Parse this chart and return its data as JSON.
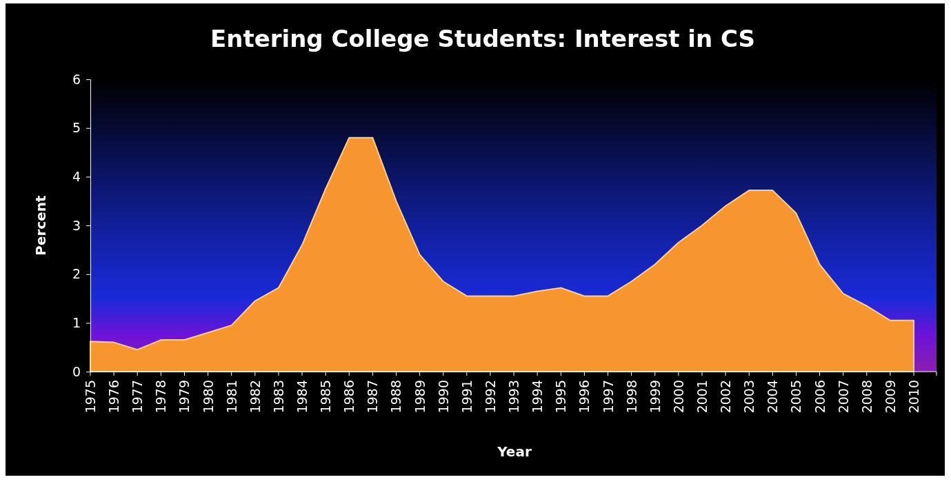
{
  "chart_data": {
    "type": "area",
    "title": "Entering College Students: Interest in CS",
    "xlabel": "Year",
    "ylabel": "Percent",
    "categories": [
      "1975",
      "1976",
      "1977",
      "1978",
      "1979",
      "1980",
      "1981",
      "1982",
      "1983",
      "1984",
      "1985",
      "1986",
      "1987",
      "1988",
      "1989",
      "1990",
      "1991",
      "1992",
      "1993",
      "1994",
      "1995",
      "1996",
      "1997",
      "1998",
      "1999",
      "2000",
      "2001",
      "2002",
      "2003",
      "2004",
      "2005",
      "2006",
      "2007",
      "2008",
      "2009",
      "2010"
    ],
    "series": [
      {
        "color": "#f7962f",
        "values": [
          0.62,
          0.6,
          0.45,
          0.65,
          0.65,
          0.8,
          0.95,
          1.45,
          1.72,
          2.6,
          3.75,
          4.8,
          4.8,
          3.5,
          2.4,
          1.85,
          1.55,
          1.55,
          1.55,
          1.65,
          1.72,
          1.55,
          1.55,
          1.85,
          2.2,
          2.65,
          3.0,
          3.4,
          3.72,
          3.72,
          3.25,
          2.2,
          1.6,
          1.35,
          1.05,
          1.05
        ]
      }
    ],
    "ylim": [
      0,
      6
    ],
    "yticks": [
      0,
      1,
      2,
      3,
      4,
      5,
      6
    ],
    "grid": false
  }
}
